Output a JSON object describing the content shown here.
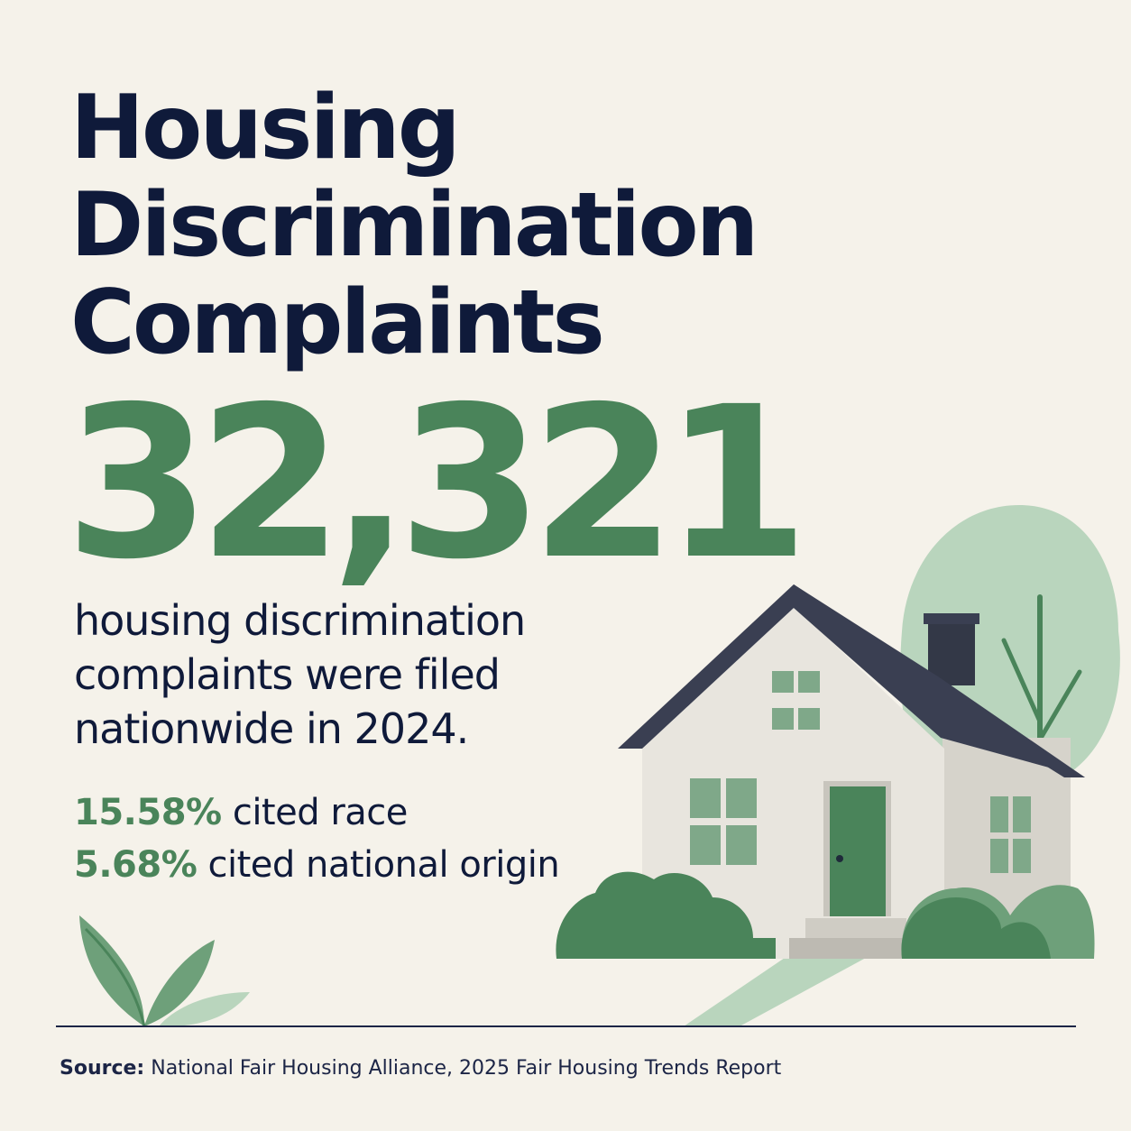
{
  "title_lines": [
    "Housing",
    "Discrimination",
    "Complaints"
  ],
  "headline_number": "32,321",
  "description_lines": [
    "housing discrimination",
    "complaints were filed",
    "nationwide in 2024."
  ],
  "stats": [
    {
      "value": "15.58%",
      "label": "cited race"
    },
    {
      "value": "5.68%",
      "label": "cited national origin"
    }
  ],
  "source": {
    "label": "Source:",
    "text": "National Fair Housing Alliance, 2025 Fair Housing Trends Report"
  },
  "icons": [
    "house-icon",
    "tree-icon",
    "bush-icon",
    "leaf-sprout-icon"
  ],
  "colors": {
    "background": "#f5f2ea",
    "navy": "#0f1a3a",
    "green": "#4a845a",
    "light_green": "#b9d5bd",
    "roof": "#3a3f52",
    "wall": "#e7e4dc"
  }
}
